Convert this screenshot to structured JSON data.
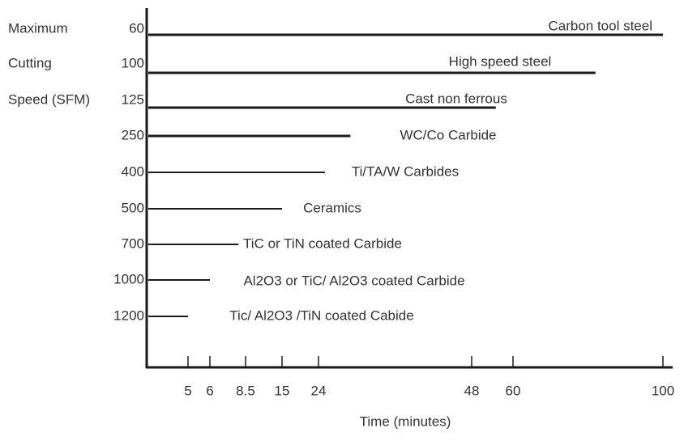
{
  "chart_data": {
    "type": "bar",
    "orientation": "horizontal",
    "y_label": [
      "Maximum",
      "Cutting",
      "Speed (SFM)"
    ],
    "x_label": "Time (minutes)",
    "categories": [
      "60",
      "100",
      "125",
      "250",
      "400",
      "500",
      "700",
      "1000",
      "1200"
    ],
    "labels": [
      "Carbon tool steel",
      "High speed steel",
      "Cast non ferrous",
      "WC/Co Carbide",
      "Ti/TA/W Carbides",
      "Ceramics",
      "TiC or TiN coated Carbide",
      "Al2O3 or TiC/ Al2O3 coated Carbide",
      "Tic/ Al2O3 /TiN coated Cabide"
    ],
    "values": [
      100,
      82,
      55,
      29,
      25,
      15,
      8,
      6,
      5
    ],
    "color": "#1a1a1a",
    "xlim": [
      0,
      100
    ],
    "xticks": [
      5,
      6,
      8.5,
      15,
      24,
      48,
      60,
      100
    ]
  }
}
